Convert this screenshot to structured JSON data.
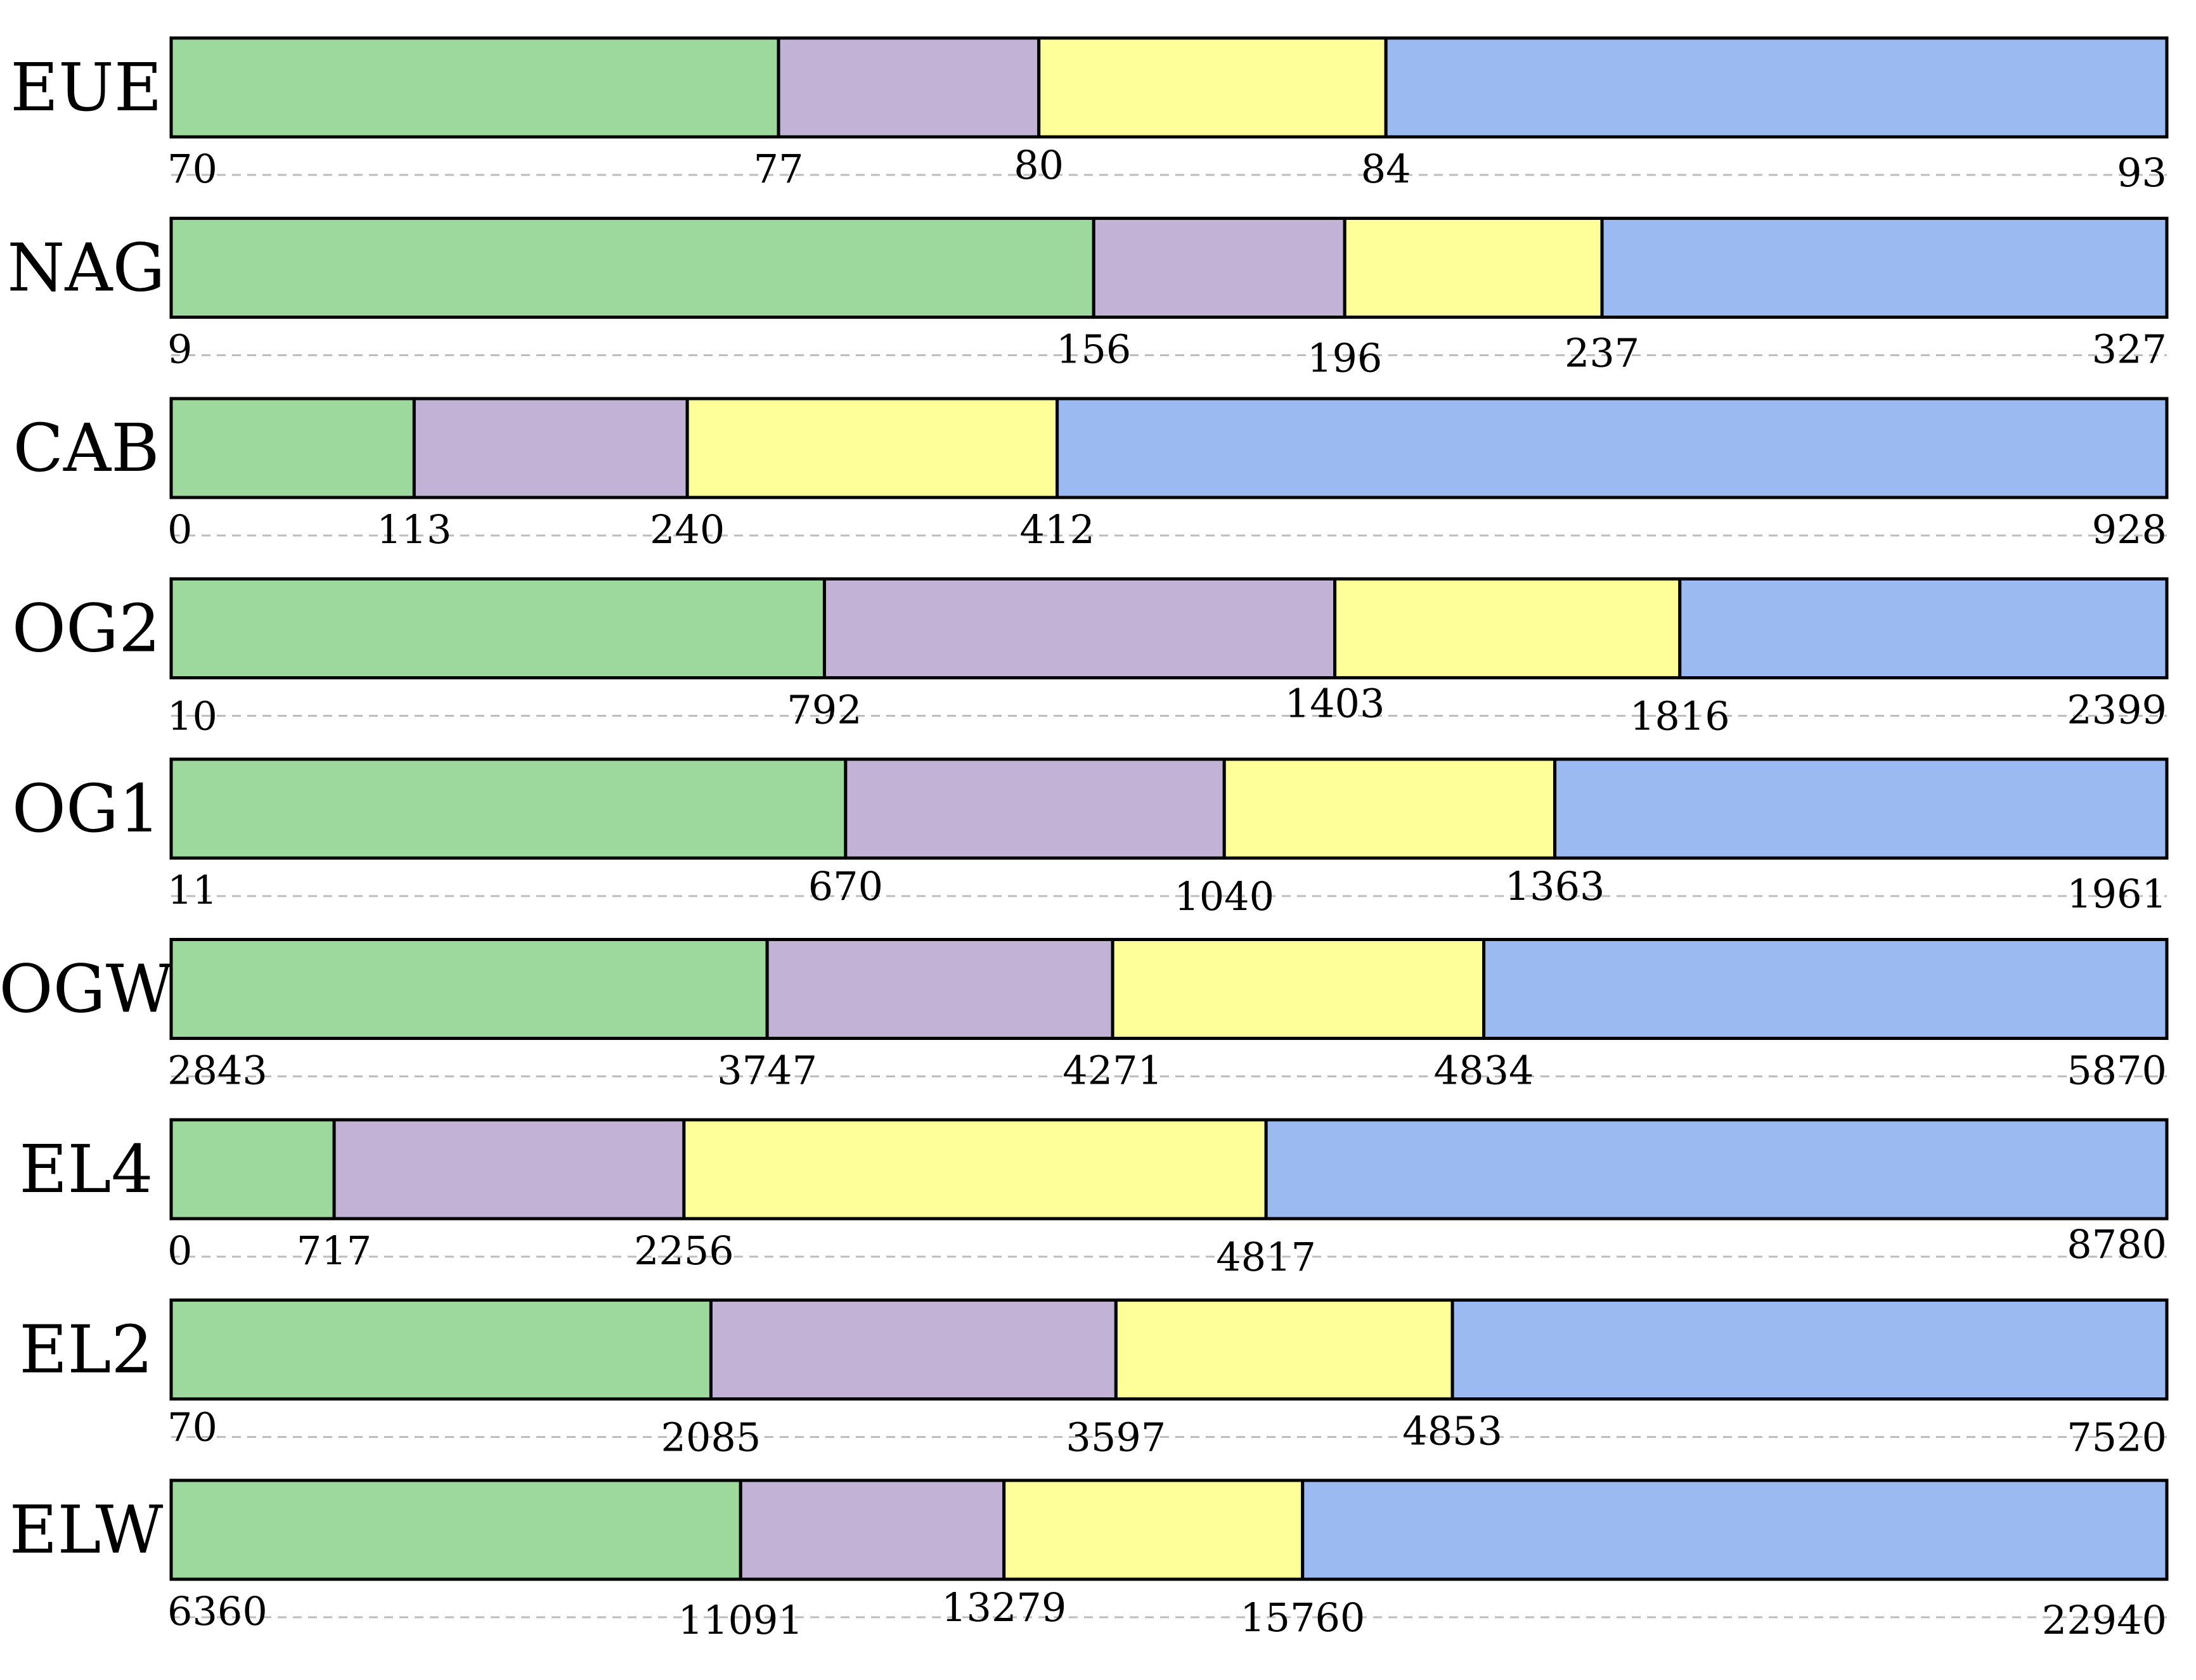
{
  "chart_data": {
    "type": "bar",
    "orientation": "horizontal-stacked",
    "title": "",
    "xlabel": "",
    "ylabel": "",
    "grid": false,
    "segment_colors": [
      "#9dd89d",
      "#c1b2d6",
      "#ffff99",
      "#9bbaf2"
    ],
    "rows": [
      {
        "label": "EUE",
        "ticks": [
          "70",
          "77",
          "80",
          "84",
          "93"
        ],
        "values": [
          70,
          77,
          80,
          84,
          93
        ]
      },
      {
        "label": "NAG",
        "ticks": [
          "9",
          "156",
          "196",
          "237",
          "327"
        ],
        "values": [
          9,
          156,
          196,
          237,
          327
        ]
      },
      {
        "label": "CAB",
        "ticks": [
          "0",
          "113",
          "240",
          "412",
          "928"
        ],
        "values": [
          0,
          113,
          240,
          412,
          928
        ]
      },
      {
        "label": "OG2",
        "ticks": [
          "10",
          "792",
          "1403",
          "1816",
          "2399"
        ],
        "values": [
          10,
          792,
          1403,
          1816,
          2399
        ]
      },
      {
        "label": "OG1",
        "ticks": [
          "11",
          "670",
          "1040",
          "1363",
          "1961"
        ],
        "values": [
          11,
          670,
          1040,
          1363,
          1961
        ]
      },
      {
        "label": "OGW",
        "ticks": [
          "2843",
          "3747",
          "4271",
          "4834",
          "5870"
        ],
        "values": [
          2843,
          3747,
          4271,
          4834,
          5870
        ]
      },
      {
        "label": "EL4",
        "ticks": [
          "0",
          "717",
          "2256",
          "4817",
          "8780"
        ],
        "values": [
          0,
          717,
          2256,
          4817,
          8780
        ]
      },
      {
        "label": "EL2",
        "ticks": [
          "70",
          "2085",
          "3597",
          "4853",
          "7520"
        ],
        "values": [
          70,
          2085,
          3597,
          4853,
          7520
        ]
      },
      {
        "label": "ELW",
        "ticks": [
          "6360",
          "11091",
          "13279",
          "15760",
          "22940"
        ],
        "values": [
          6360,
          11091,
          13279,
          15760,
          22940
        ]
      }
    ]
  }
}
